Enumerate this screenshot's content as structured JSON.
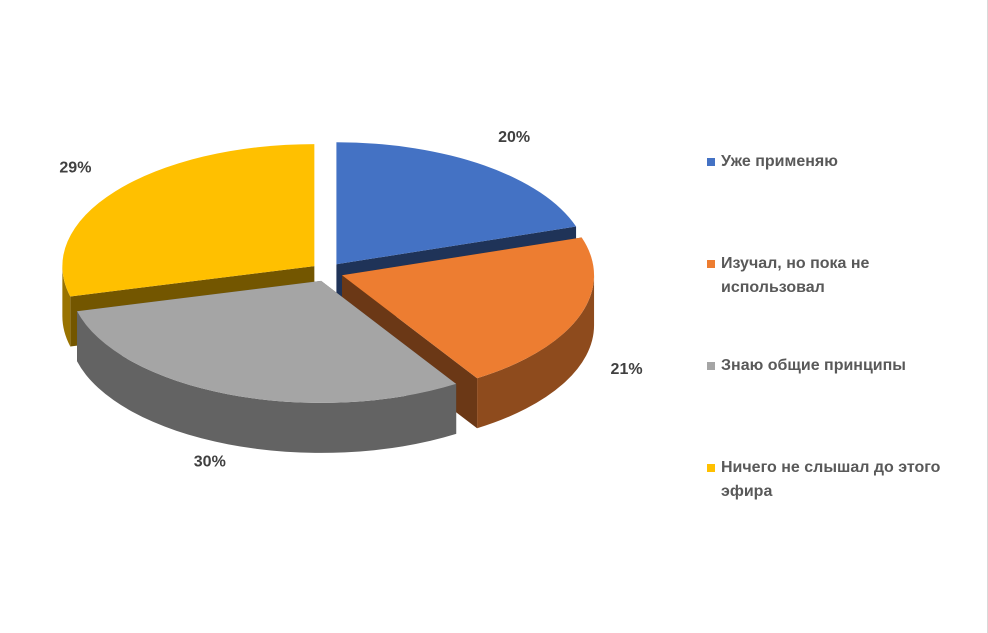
{
  "chart_data": {
    "type": "pie3d",
    "categories": [
      "Уже применяю",
      "Изучал, но пока не использовал",
      "Знаю общие принципы",
      "Ничего не слышал до этого эфира"
    ],
    "values": [
      20,
      21,
      30,
      29
    ],
    "value_labels": [
      "20%",
      "21%",
      "30%",
      "29%"
    ],
    "colors": [
      "#4472c4",
      "#ed7d31",
      "#a5a5a5",
      "#ffc000"
    ],
    "legend": "right"
  }
}
